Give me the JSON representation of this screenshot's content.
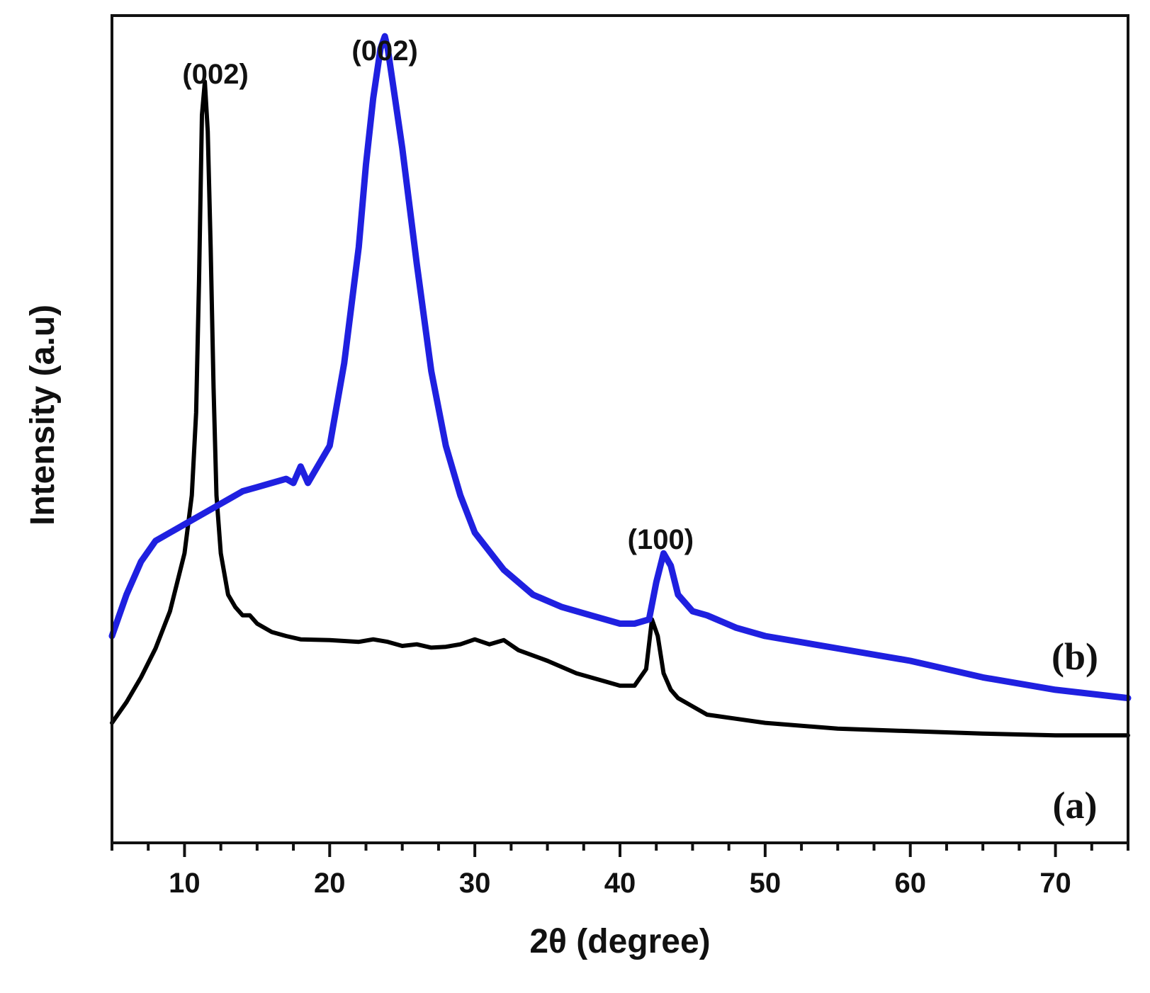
{
  "chart_data": {
    "type": "line",
    "title": "",
    "xlabel": "2θ (degree)",
    "ylabel": "Intensity (a.u)",
    "xlim": [
      5,
      75
    ],
    "ylim": [
      0,
      100
    ],
    "y_ticks_shown": false,
    "grid": false,
    "legend": "none",
    "x_ticks": [
      10,
      20,
      30,
      40,
      50,
      60,
      70
    ],
    "x_tick_labels": [
      "10",
      "20",
      "30",
      "40",
      "50",
      "60",
      "70"
    ],
    "series": [
      {
        "label": "(a)",
        "color": "#000000",
        "x": [
          5,
          6,
          7,
          8,
          9,
          10,
          10.5,
          10.8,
          11.0,
          11.2,
          11.4,
          11.6,
          11.8,
          12.0,
          12.2,
          12.5,
          13,
          13.5,
          14,
          14.5,
          15,
          16,
          17,
          18,
          20,
          22,
          23,
          24,
          25,
          26,
          27,
          28,
          29,
          30,
          31,
          32,
          33,
          35,
          37,
          39,
          40,
          41,
          41.8,
          42.2,
          42.6,
          43,
          43.5,
          44,
          45,
          46,
          48,
          50,
          55,
          60,
          65,
          70,
          75
        ],
        "y": [
          14.5,
          17,
          20,
          23.5,
          28,
          35,
          42,
          52,
          68,
          88,
          92,
          86,
          72,
          55,
          42,
          35,
          30,
          28.5,
          27.5,
          27.5,
          26.5,
          25.5,
          25,
          24.6,
          24.5,
          24.3,
          24.6,
          24.3,
          23.8,
          24,
          23.6,
          23.7,
          24,
          24.6,
          24,
          24.5,
          23.3,
          22,
          20.5,
          19.5,
          19,
          19,
          21,
          27,
          25,
          20.5,
          18.5,
          17.5,
          16.5,
          15.5,
          15,
          14.5,
          13.8,
          13.5,
          13.2,
          13,
          13
        ]
      },
      {
        "label": "(b)",
        "color": "#1f20e0",
        "x": [
          5,
          6,
          7,
          8,
          9,
          10,
          11,
          12,
          13,
          14,
          15,
          16,
          17,
          17.5,
          18,
          18.5,
          19,
          20,
          21,
          22,
          22.5,
          23,
          23.5,
          23.8,
          24,
          24.5,
          25,
          26,
          27,
          28,
          29,
          30,
          32,
          34,
          36,
          38,
          40,
          41,
          42,
          42.5,
          43,
          43.5,
          44,
          45,
          46,
          48,
          50,
          55,
          60,
          65,
          70,
          75
        ],
        "y": [
          25,
          30,
          34,
          36.5,
          37.5,
          38.5,
          39.5,
          40.5,
          41.5,
          42.5,
          43,
          43.5,
          44,
          43.5,
          45.5,
          43.5,
          45,
          48,
          58,
          72,
          82,
          90,
          96,
          97.5,
          96,
          90,
          84,
          70,
          57,
          48,
          42,
          37.5,
          33,
          30,
          28.5,
          27.5,
          26.5,
          26.5,
          27,
          31.5,
          35,
          33.5,
          30,
          28,
          27.5,
          26,
          25,
          23.5,
          22,
          20,
          18.5,
          17.5
        ]
      }
    ],
    "annotations": [
      {
        "text": "(002)",
        "x": 11.4
      },
      {
        "text": "(002)",
        "x": 23.8
      },
      {
        "text": "(100)",
        "x": 42.8
      }
    ]
  }
}
